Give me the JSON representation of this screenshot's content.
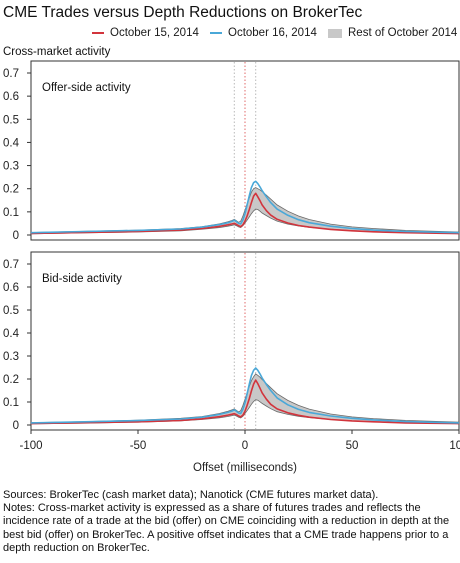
{
  "title": "CME Trades versus Depth Reductions on BrokerTec",
  "ylabel": "Cross-market activity",
  "legend": [
    {
      "label": "October 15, 2014",
      "color": "#d2343c",
      "kind": "line"
    },
    {
      "label": "October 16, 2014",
      "color": "#4aa8d8",
      "kind": "line"
    },
    {
      "label": "Rest of October 2014",
      "color": "#c8c8c8",
      "kind": "band"
    }
  ],
  "colors": {
    "oct15": "#d2343c",
    "oct16": "#4aa8d8",
    "band_fill": "#c8c8c8",
    "band_edge": "#6a6a6a",
    "vlines": "#b9b9b9"
  },
  "footer": {
    "sources": "Sources: BrokerTec (cash market data); Nanotick (CME futures market data).",
    "notes": "Notes: Cross-market activity is expressed as a share of futures trades and reflects the incidence rate of a trade at the bid (offer) on CME coinciding with a reduction in depth at the best bid (offer) on BrokerTec. A positive offset indicates that a CME trade happens prior to a depth reduction on BrokerTec."
  },
  "chart_data": [
    {
      "type": "line",
      "panel_label": "Offer-side activity",
      "xlabel": "",
      "ylim": [
        0,
        0.7
      ],
      "yticks": [
        "0",
        "0.1",
        "0.2",
        "0.3",
        "0.4",
        "0.5",
        "0.6",
        "0.7"
      ],
      "xlim": [
        -100,
        100
      ],
      "reference_lines_x": [
        -5,
        0,
        5
      ],
      "x": [
        -100,
        -75,
        -50,
        -30,
        -20,
        -12,
        -8,
        -6,
        -5,
        -4,
        -3,
        -2,
        -1,
        0,
        1,
        2,
        3,
        4,
        5,
        6,
        7,
        8,
        10,
        12,
        15,
        20,
        25,
        30,
        40,
        50,
        60,
        75,
        100
      ],
      "band_upper": [
        0.011,
        0.016,
        0.021,
        0.028,
        0.036,
        0.048,
        0.057,
        0.063,
        0.068,
        0.062,
        0.055,
        0.06,
        0.082,
        0.108,
        0.135,
        0.16,
        0.185,
        0.2,
        0.205,
        0.2,
        0.195,
        0.188,
        0.172,
        0.155,
        0.13,
        0.103,
        0.082,
        0.067,
        0.047,
        0.035,
        0.028,
        0.02,
        0.013
      ],
      "band_lower": [
        0.005,
        0.009,
        0.013,
        0.018,
        0.025,
        0.032,
        0.038,
        0.042,
        0.044,
        0.04,
        0.035,
        0.032,
        0.04,
        0.052,
        0.064,
        0.078,
        0.092,
        0.104,
        0.112,
        0.11,
        0.103,
        0.095,
        0.084,
        0.073,
        0.06,
        0.047,
        0.039,
        0.033,
        0.025,
        0.019,
        0.015,
        0.011,
        0.007
      ],
      "series": [
        {
          "name": "October 15, 2014",
          "values": [
            0.007,
            0.011,
            0.015,
            0.021,
            0.028,
            0.037,
            0.044,
            0.048,
            0.05,
            0.046,
            0.04,
            0.036,
            0.044,
            0.06,
            0.082,
            0.11,
            0.14,
            0.168,
            0.18,
            0.165,
            0.148,
            0.13,
            0.105,
            0.086,
            0.068,
            0.052,
            0.041,
            0.034,
            0.024,
            0.018,
            0.014,
            0.01,
            0.006
          ]
        },
        {
          "name": "October 16, 2014",
          "values": [
            0.01,
            0.015,
            0.02,
            0.026,
            0.034,
            0.045,
            0.053,
            0.059,
            0.064,
            0.058,
            0.05,
            0.048,
            0.065,
            0.092,
            0.13,
            0.17,
            0.205,
            0.226,
            0.232,
            0.222,
            0.208,
            0.192,
            0.165,
            0.14,
            0.112,
            0.085,
            0.066,
            0.053,
            0.038,
            0.028,
            0.021,
            0.015,
            0.01
          ]
        }
      ]
    },
    {
      "type": "line",
      "panel_label": "Bid-side activity",
      "xlabel": "Offset (milliseconds)",
      "ylim": [
        0,
        0.7
      ],
      "yticks": [
        "0",
        "0.1",
        "0.2",
        "0.3",
        "0.4",
        "0.5",
        "0.6",
        "0.7"
      ],
      "xlim": [
        -100,
        100
      ],
      "xticks": [
        "-100",
        "-50",
        "0",
        "50",
        "100"
      ],
      "reference_lines_x": [
        -5,
        0,
        5
      ],
      "x": [
        -100,
        -75,
        -50,
        -30,
        -20,
        -12,
        -8,
        -6,
        -5,
        -4,
        -3,
        -2,
        -1,
        0,
        1,
        2,
        3,
        4,
        5,
        6,
        7,
        8,
        10,
        12,
        15,
        20,
        25,
        30,
        40,
        50,
        60,
        75,
        100
      ],
      "band_upper": [
        0.01,
        0.015,
        0.021,
        0.029,
        0.037,
        0.05,
        0.06,
        0.066,
        0.07,
        0.064,
        0.057,
        0.062,
        0.085,
        0.112,
        0.14,
        0.168,
        0.192,
        0.21,
        0.222,
        0.216,
        0.208,
        0.198,
        0.18,
        0.162,
        0.136,
        0.107,
        0.085,
        0.069,
        0.048,
        0.035,
        0.028,
        0.02,
        0.012
      ],
      "band_lower": [
        0.005,
        0.008,
        0.012,
        0.018,
        0.024,
        0.031,
        0.037,
        0.041,
        0.043,
        0.039,
        0.034,
        0.031,
        0.038,
        0.05,
        0.062,
        0.076,
        0.09,
        0.102,
        0.11,
        0.108,
        0.101,
        0.094,
        0.082,
        0.071,
        0.058,
        0.046,
        0.038,
        0.032,
        0.024,
        0.018,
        0.014,
        0.01,
        0.006
      ],
      "series": [
        {
          "name": "October 15, 2014",
          "values": [
            0.006,
            0.01,
            0.014,
            0.02,
            0.027,
            0.036,
            0.043,
            0.047,
            0.049,
            0.045,
            0.039,
            0.035,
            0.043,
            0.06,
            0.085,
            0.115,
            0.148,
            0.178,
            0.195,
            0.18,
            0.16,
            0.14,
            0.112,
            0.09,
            0.07,
            0.053,
            0.042,
            0.034,
            0.024,
            0.018,
            0.014,
            0.009,
            0.006
          ]
        },
        {
          "name": "October 16, 2014",
          "values": [
            0.009,
            0.014,
            0.019,
            0.026,
            0.034,
            0.046,
            0.055,
            0.061,
            0.066,
            0.06,
            0.052,
            0.05,
            0.068,
            0.096,
            0.135,
            0.178,
            0.215,
            0.238,
            0.248,
            0.238,
            0.222,
            0.205,
            0.176,
            0.15,
            0.118,
            0.088,
            0.068,
            0.055,
            0.039,
            0.029,
            0.022,
            0.015,
            0.009
          ]
        }
      ]
    }
  ]
}
